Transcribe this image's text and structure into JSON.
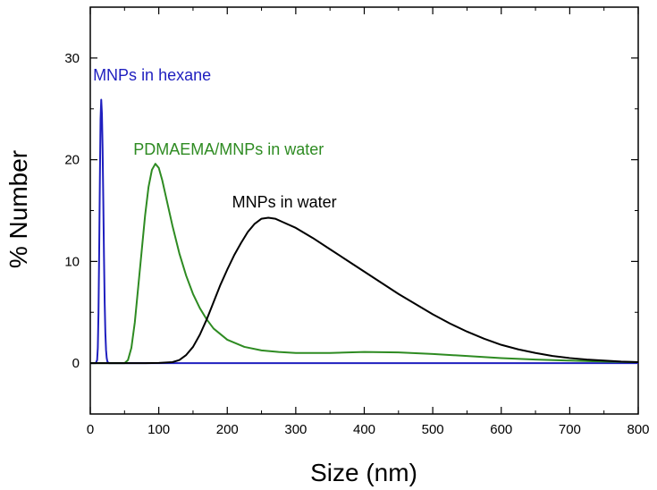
{
  "chart_data": {
    "type": "line",
    "title": "",
    "xlabel": "Size (nm)",
    "ylabel": "% Number",
    "xlim": [
      0,
      800
    ],
    "ylim": [
      -5,
      35
    ],
    "xticks": [
      0,
      100,
      200,
      300,
      400,
      500,
      600,
      700,
      800
    ],
    "yticks": [
      0,
      10,
      20,
      30
    ],
    "grid": false,
    "series": [
      {
        "name": "MNPs in hexane",
        "color": "#1f1fbf",
        "label_color": "#1f1fbf",
        "points": [
          [
            0,
            0
          ],
          [
            8,
            0
          ],
          [
            10,
            0.3
          ],
          [
            11,
            1.5
          ],
          [
            12,
            5
          ],
          [
            13,
            11
          ],
          [
            14,
            18
          ],
          [
            15,
            24
          ],
          [
            16,
            25.9
          ],
          [
            17,
            24.5
          ],
          [
            18,
            21
          ],
          [
            19,
            16
          ],
          [
            20,
            10.5
          ],
          [
            21,
            6
          ],
          [
            22,
            3
          ],
          [
            23,
            1.3
          ],
          [
            24,
            0.5
          ],
          [
            25,
            0.15
          ],
          [
            27,
            0
          ],
          [
            800,
            0
          ]
        ]
      },
      {
        "name": "PDMAEMA/MNPs in water",
        "color": "#2e8b22",
        "label_color": "#2e8b22",
        "points": [
          [
            0,
            0
          ],
          [
            50,
            0
          ],
          [
            55,
            0.3
          ],
          [
            60,
            1.5
          ],
          [
            65,
            4
          ],
          [
            70,
            7.5
          ],
          [
            75,
            11
          ],
          [
            80,
            14.5
          ],
          [
            85,
            17.3
          ],
          [
            90,
            19
          ],
          [
            95,
            19.6
          ],
          [
            100,
            19.2
          ],
          [
            105,
            18
          ],
          [
            110,
            16.5
          ],
          [
            120,
            13.5
          ],
          [
            130,
            10.8
          ],
          [
            140,
            8.6
          ],
          [
            150,
            6.8
          ],
          [
            160,
            5.4
          ],
          [
            170,
            4.3
          ],
          [
            180,
            3.4
          ],
          [
            200,
            2.3
          ],
          [
            225,
            1.6
          ],
          [
            250,
            1.25
          ],
          [
            275,
            1.1
          ],
          [
            300,
            1.0
          ],
          [
            350,
            1.0
          ],
          [
            400,
            1.1
          ],
          [
            450,
            1.05
          ],
          [
            500,
            0.9
          ],
          [
            550,
            0.7
          ],
          [
            600,
            0.5
          ],
          [
            650,
            0.35
          ],
          [
            700,
            0.25
          ],
          [
            750,
            0.15
          ],
          [
            800,
            0.1
          ]
        ]
      },
      {
        "name": "MNPs in water",
        "color": "#000000",
        "label_color": "#000000",
        "points": [
          [
            0,
            0
          ],
          [
            80,
            0
          ],
          [
            100,
            0.02
          ],
          [
            120,
            0.1
          ],
          [
            130,
            0.3
          ],
          [
            140,
            0.8
          ],
          [
            150,
            1.6
          ],
          [
            160,
            2.8
          ],
          [
            170,
            4.3
          ],
          [
            180,
            6.0
          ],
          [
            190,
            7.7
          ],
          [
            200,
            9.2
          ],
          [
            210,
            10.6
          ],
          [
            220,
            11.8
          ],
          [
            230,
            12.9
          ],
          [
            240,
            13.7
          ],
          [
            250,
            14.2
          ],
          [
            260,
            14.3
          ],
          [
            270,
            14.2
          ],
          [
            280,
            13.9
          ],
          [
            300,
            13.3
          ],
          [
            325,
            12.3
          ],
          [
            350,
            11.2
          ],
          [
            375,
            10.1
          ],
          [
            400,
            9.0
          ],
          [
            425,
            7.9
          ],
          [
            450,
            6.8
          ],
          [
            475,
            5.8
          ],
          [
            500,
            4.8
          ],
          [
            525,
            3.9
          ],
          [
            550,
            3.1
          ],
          [
            575,
            2.4
          ],
          [
            600,
            1.8
          ],
          [
            625,
            1.35
          ],
          [
            650,
            1.0
          ],
          [
            675,
            0.7
          ],
          [
            700,
            0.5
          ],
          [
            725,
            0.35
          ],
          [
            750,
            0.25
          ],
          [
            775,
            0.15
          ],
          [
            800,
            0.1
          ]
        ]
      }
    ],
    "annotations": [
      {
        "text": "MNPs in hexane",
        "series": "MNPs in hexane",
        "x": 4,
        "y": 27.8
      },
      {
        "text": "PDMAEMA/MNPs in water",
        "series": "PDMAEMA/MNPs in water",
        "x": 63,
        "y": 20.5
      },
      {
        "text": "MNPs in water",
        "series": "MNPs in water",
        "x": 207,
        "y": 15.3
      }
    ]
  }
}
